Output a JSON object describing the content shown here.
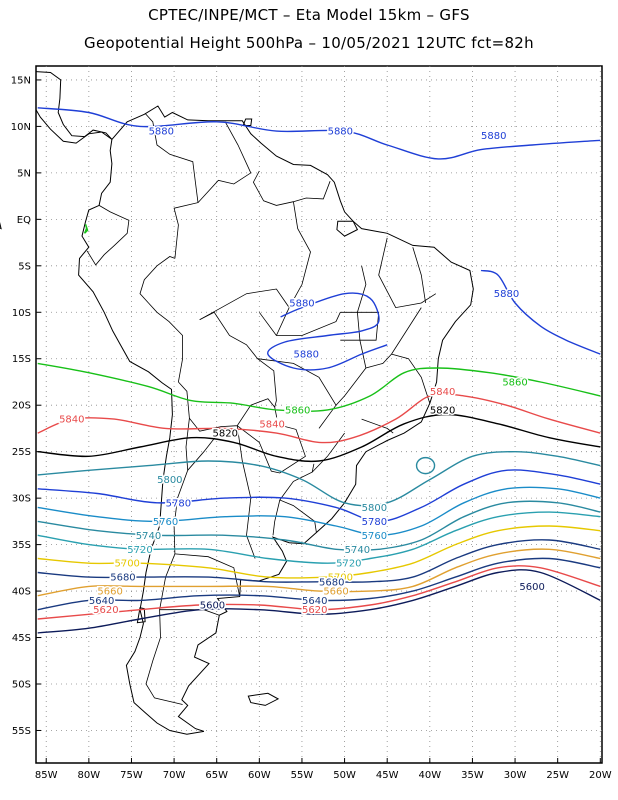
{
  "title_line1": "CPTEC/INPE/MCT –  Eta Model 15km – GFS",
  "title_line2": "Geopotential Height 500hPa – 10/05/2021 12UTC fct=82h",
  "lat_ticks": [
    "15N",
    "10N",
    "5N",
    "EQ",
    "5S",
    "10S",
    "15S",
    "20S",
    "25S",
    "30S",
    "35S",
    "40S",
    "45S",
    "50S",
    "55S"
  ],
  "lon_ticks": [
    "85W",
    "80W",
    "75W",
    "70W",
    "65W",
    "60W",
    "55W",
    "50W",
    "45W",
    "40W",
    "35W",
    "30W",
    "25W",
    "20W"
  ],
  "contour_labels": [
    {
      "text": "5880",
      "color": "#1f3fd6",
      "lon": -71.5,
      "lat": 9.5
    },
    {
      "text": "5880",
      "color": "#1f3fd6",
      "lon": -50.5,
      "lat": 9.5
    },
    {
      "text": "5880",
      "color": "#1f3fd6",
      "lon": -32.5,
      "lat": 9.0
    },
    {
      "text": "5880",
      "color": "#1f3fd6",
      "lon": -31.0,
      "lat": -8.0
    },
    {
      "text": "5880",
      "color": "#1f3fd6",
      "lon": -55.0,
      "lat": -9.0
    },
    {
      "text": "5880",
      "color": "#1f3fd6",
      "lon": -54.5,
      "lat": -14.5
    },
    {
      "text": "5860",
      "color": "#18c018",
      "lon": -30.0,
      "lat": -17.5
    },
    {
      "text": "5860",
      "color": "#18c018",
      "lon": -55.5,
      "lat": -20.5
    },
    {
      "text": "5840",
      "color": "#e84a4a",
      "lon": -38.5,
      "lat": -18.5
    },
    {
      "text": "5840",
      "color": "#e84a4a",
      "lon": -82.0,
      "lat": -21.5
    },
    {
      "text": "5840",
      "color": "#e84a4a",
      "lon": -58.5,
      "lat": -22.0
    },
    {
      "text": "5820",
      "color": "#000000",
      "lon": -38.5,
      "lat": -20.5
    },
    {
      "text": "5820",
      "color": "#000000",
      "lon": -64.0,
      "lat": -23.0
    },
    {
      "text": "5800",
      "color": "#2a8aa0",
      "lon": -70.5,
      "lat": -28.0
    },
    {
      "text": "5800",
      "color": "#2a8aa0",
      "lon": -46.5,
      "lat": -31.0
    },
    {
      "text": "5780",
      "color": "#1f3fd6",
      "lon": -69.5,
      "lat": -30.5
    },
    {
      "text": "5780",
      "color": "#1f3fd6",
      "lon": -46.5,
      "lat": -32.5
    },
    {
      "text": "5760",
      "color": "#1a8cc8",
      "lon": -71.0,
      "lat": -32.5
    },
    {
      "text": "5760",
      "color": "#1a8cc8",
      "lon": -46.5,
      "lat": -34.0
    },
    {
      "text": "5740",
      "color": "#2a8aa0",
      "lon": -73.0,
      "lat": -34.0
    },
    {
      "text": "5740",
      "color": "#2a8aa0",
      "lon": -48.5,
      "lat": -35.5
    },
    {
      "text": "5720",
      "color": "#2aa0b0",
      "lon": -74.0,
      "lat": -35.5
    },
    {
      "text": "5720",
      "color": "#2aa0b0",
      "lon": -49.5,
      "lat": -37.0
    },
    {
      "text": "5700",
      "color": "#e6c800",
      "lon": -75.5,
      "lat": -37.0
    },
    {
      "text": "5700",
      "color": "#e6c800",
      "lon": -50.5,
      "lat": -38.5
    },
    {
      "text": "5680",
      "color": "#1a3a80",
      "lon": -76.0,
      "lat": -38.5
    },
    {
      "text": "5680",
      "color": "#1a3a80",
      "lon": -51.5,
      "lat": -39.0
    },
    {
      "text": "5660",
      "color": "#e0a030",
      "lon": -77.5,
      "lat": -40.0
    },
    {
      "text": "5660",
      "color": "#e0a030",
      "lon": -51.0,
      "lat": -40.0
    },
    {
      "text": "5640",
      "color": "#1a3a80",
      "lon": -78.5,
      "lat": -41.0
    },
    {
      "text": "5640",
      "color": "#1a3a80",
      "lon": -53.5,
      "lat": -41.0
    },
    {
      "text": "5620",
      "color": "#e84a4a",
      "lon": -78.0,
      "lat": -42.0
    },
    {
      "text": "5620",
      "color": "#e84a4a",
      "lon": -53.5,
      "lat": -42.0
    },
    {
      "text": "5600",
      "color": "#0d1b5a",
      "lon": -65.5,
      "lat": -41.5
    },
    {
      "text": "5600",
      "color": "#0d1b5a",
      "lon": -28.0,
      "lat": -39.5
    }
  ],
  "colors": {
    "coast": "#000000",
    "grid": "#8a8a8a",
    "c5880": "#1f3fd6",
    "c5860": "#18c018",
    "c5840": "#e84a4a",
    "c5820": "#000000",
    "c5800": "#2a8aa0",
    "c5780": "#1f3fd6",
    "c5760": "#1a8cc8",
    "c5740": "#2a8aa0",
    "c5720": "#2aa0b0",
    "c5700": "#e6c800",
    "c5680": "#1a3a80",
    "c5660": "#e0a030",
    "c5640": "#1a3a80",
    "c5620": "#e84a4a",
    "c5600": "#0d1b5a"
  }
}
